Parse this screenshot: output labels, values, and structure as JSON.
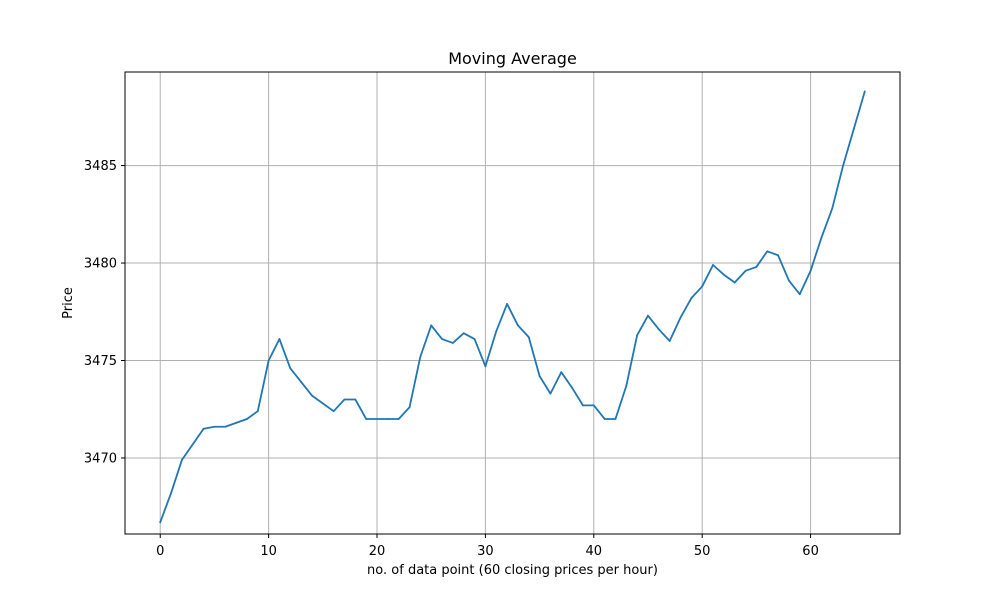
{
  "chart_data": {
    "type": "line",
    "title": "Moving Average",
    "xlabel": "no. of data point (60 closing prices per hour)",
    "ylabel": "Price",
    "xlim": [
      -3.25,
      68.25
    ],
    "ylim": [
      3466.1,
      3489.8
    ],
    "grid": true,
    "line_color": "#1f77b4",
    "grid_color": "#b0b0b0",
    "x_ticks": [
      0,
      10,
      20,
      30,
      40,
      50,
      60
    ],
    "x_tick_labels": [
      "0",
      "10",
      "20",
      "30",
      "40",
      "50",
      "60"
    ],
    "y_ticks": [
      3470,
      3475,
      3480,
      3485
    ],
    "y_tick_labels": [
      "3470",
      "3475",
      "3480",
      "3485"
    ],
    "series": [
      {
        "x": [
          0,
          1,
          2,
          3,
          4,
          5,
          6,
          7,
          8,
          9,
          10,
          11,
          12,
          13,
          14,
          15,
          16,
          17,
          18,
          19,
          20,
          21,
          22,
          23,
          24,
          25,
          26,
          27,
          28,
          29,
          30,
          31,
          32,
          33,
          34,
          35,
          36,
          37,
          38,
          39,
          40,
          41,
          42,
          43,
          44,
          45,
          46,
          47,
          48,
          49,
          50,
          51,
          52,
          53,
          54,
          55,
          56,
          57,
          58,
          59,
          60,
          61,
          62,
          63,
          64,
          65
        ],
        "values": [
          3466.7,
          3468.2,
          3469.9,
          3470.7,
          3471.5,
          3471.6,
          3471.6,
          3471.8,
          3472.0,
          3472.4,
          3475.0,
          3476.1,
          3474.6,
          3473.9,
          3473.2,
          3472.8,
          3472.4,
          3473.0,
          3473.0,
          3472.0,
          3472.0,
          3472.0,
          3472.0,
          3472.6,
          3475.2,
          3476.8,
          3476.1,
          3475.9,
          3476.4,
          3476.1,
          3474.7,
          3476.5,
          3477.9,
          3476.8,
          3476.2,
          3474.2,
          3473.3,
          3474.4,
          3473.6,
          3472.7,
          3472.7,
          3472.0,
          3472.0,
          3473.7,
          3476.3,
          3477.3,
          3476.6,
          3476.0,
          3477.2,
          3478.2,
          3478.8,
          3479.9,
          3479.4,
          3479.0,
          3479.6,
          3479.8,
          3480.6,
          3480.4,
          3479.1,
          3478.4,
          3479.6,
          3481.3,
          3482.8,
          3485.0,
          3486.9,
          3488.8
        ]
      }
    ]
  }
}
